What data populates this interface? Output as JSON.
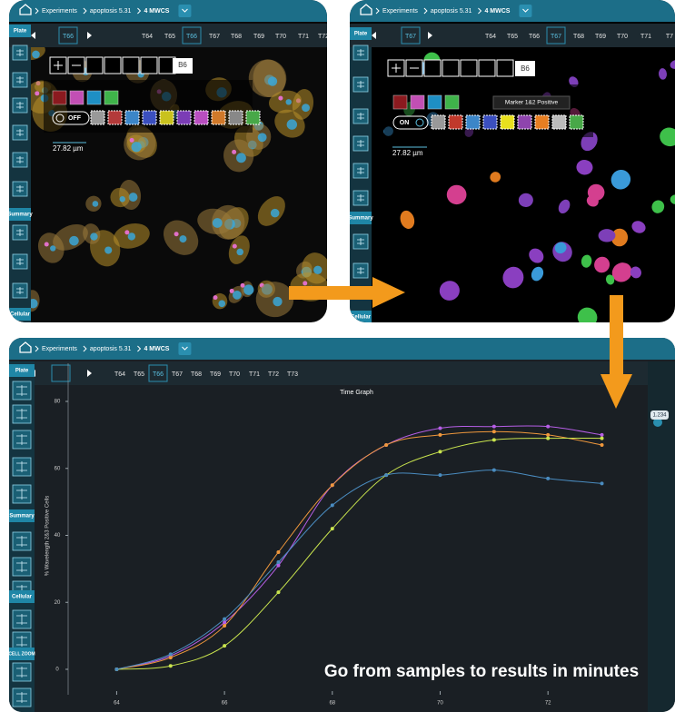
{
  "top_left": {
    "breadcrumb": [
      "Experiments",
      "apoptosis 5.31",
      "4 MWCS"
    ],
    "sidebar": [
      "Plate",
      "Summary",
      "Cellular"
    ],
    "current_tab": "T66",
    "tabs": [
      "T64",
      "T65",
      "T66",
      "T67",
      "T68",
      "T69",
      "T70",
      "T71",
      "T72"
    ],
    "selected_tab": 2,
    "well": "B6",
    "toggle": "OFF",
    "scale": "27.82 µm"
  },
  "top_right": {
    "breadcrumb": [
      "Experiments",
      "apoptosis 5.31",
      "4 MWCS"
    ],
    "sidebar": [
      "Plate",
      "Summary",
      "Cellular"
    ],
    "current_tab": "T67",
    "tabs": [
      "T64",
      "T65",
      "T66",
      "T67",
      "T68",
      "T69",
      "T70",
      "T71",
      "T7"
    ],
    "selected_tab": 3,
    "well": "B6",
    "toggle": "ON",
    "tooltip": "Marker 1&2 Positive",
    "scale": "27.82 µm"
  },
  "bottom": {
    "breadcrumb": [
      "Experiments",
      "apoptosis 5.31",
      "4 MWCS"
    ],
    "sidebar": [
      "Plate",
      "Summary",
      "Cellular",
      "CELL ZOOM"
    ],
    "tabs": [
      "T64",
      "T65",
      "T66",
      "T67",
      "T68",
      "T69",
      "T70",
      "T71",
      "T72",
      "T73"
    ],
    "selected_tab": 2,
    "badge": "1.234",
    "chart": {
      "type": "line",
      "title": "Time Graph",
      "y_label": "% Wavelength 2&3 Positive Cells",
      "x": [
        64,
        65,
        66,
        67,
        68,
        69,
        70,
        71,
        72,
        73
      ],
      "series": [
        {
          "color": "#b65ee6",
          "values": [
            0,
            4,
            14,
            31,
            55,
            67,
            72,
            72.5,
            72.5,
            70
          ]
        },
        {
          "color": "#f0983c",
          "values": [
            0,
            3.5,
            13,
            35,
            55,
            67,
            70,
            71,
            70,
            67
          ]
        },
        {
          "color": "#c9e44e",
          "values": [
            0,
            1,
            7,
            23,
            42,
            58,
            65,
            68.5,
            69,
            69
          ]
        },
        {
          "color": "#4a8cc0",
          "values": [
            0,
            4.5,
            15,
            32,
            49,
            58,
            58,
            59.5,
            57,
            55.5
          ]
        }
      ],
      "xlim": [
        63.1,
        73.8
      ],
      "ylim": [
        -7.6,
        91.4
      ],
      "xticks": [
        64,
        66,
        68,
        70,
        72
      ],
      "yticks": [
        0,
        20,
        40,
        60,
        80
      ]
    }
  },
  "tagline": "Go from samples to results in minutes"
}
